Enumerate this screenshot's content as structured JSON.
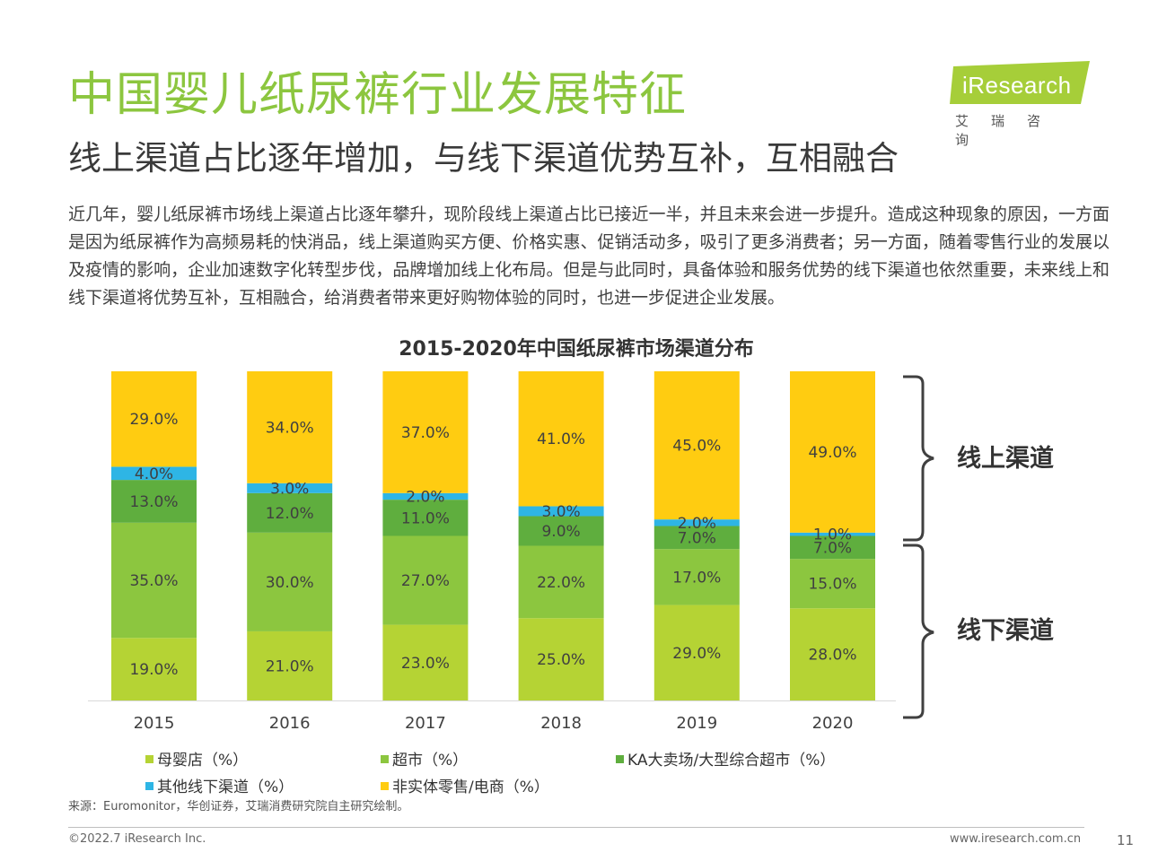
{
  "header": {
    "title": "中国婴儿纸尿裤行业发展特征",
    "subtitle": "线上渠道占比逐年增加，与线下渠道优势互补，互相融合"
  },
  "logo": {
    "brand": "iResearch",
    "cn": "艾瑞咨询",
    "color": "#a6ce39"
  },
  "body_text": "近几年，婴儿纸尿裤市场线上渠道占比逐年攀升，现阶段线上渠道占比已接近一半，并且未来会进一步提升。造成这种现象的原因，一方面是因为纸尿裤作为高频易耗的快消品，线上渠道购买方便、价格实惠、促销活动多，吸引了更多消费者；另一方面，随着零售行业的发展以及疫情的影响，企业加速数字化转型步伐，品牌增加线上化布局。但是与此同时，具备体验和服务优势的线下渠道也依然重要，未来线上和线下渠道将优势互补，互相融合，给消费者带来更好购物体验的同时，也进一步促进企业发展。",
  "chart_data": {
    "type": "bar",
    "stacked": true,
    "title": "2015-2020年中国纸尿裤市场渠道分布",
    "categories": [
      "2015",
      "2016",
      "2017",
      "2018",
      "2019",
      "2020"
    ],
    "ylim": [
      0,
      100
    ],
    "grid": false,
    "legend_position": "bottom",
    "series": [
      {
        "name": "母婴店（%）",
        "color": "#b5d334",
        "values": [
          19.0,
          21.0,
          23.0,
          25.0,
          29.0,
          28.0
        ]
      },
      {
        "name": "超市（%）",
        "color": "#8cc63f",
        "values": [
          35.0,
          30.0,
          27.0,
          22.0,
          17.0,
          15.0
        ]
      },
      {
        "name": "KA大卖场/大型综合超市（%）",
        "color": "#5fae3e",
        "values": [
          13.0,
          12.0,
          11.0,
          9.0,
          7.0,
          7.0
        ]
      },
      {
        "name": "其他线下渠道（%）",
        "color": "#2eb5e5",
        "values": [
          4.0,
          3.0,
          2.0,
          3.0,
          2.0,
          1.0
        ]
      },
      {
        "name": "非实体零售/电商（%）",
        "color": "#ffcc11",
        "values": [
          29.0,
          34.0,
          37.0,
          41.0,
          45.0,
          49.0
        ]
      }
    ],
    "data_labels": [
      [
        "19.0%",
        "21.0%",
        "23.0%",
        "25.0%",
        "29.0%",
        "28.0%"
      ],
      [
        "35.0%",
        "30.0%",
        "27.0%",
        "22.0%",
        "17.0%",
        "15.0%"
      ],
      [
        "13.0%",
        "12.0%",
        "11.0%",
        "9.0%",
        "7.0%",
        "7.0%"
      ],
      [
        "4.0%",
        "3.0%",
        "2.0%",
        "3.0%",
        "2.0%",
        "1.0%"
      ],
      [
        "29.0%",
        "34.0%",
        "37.0%",
        "41.0%",
        "45.0%",
        "49.0%"
      ]
    ],
    "annotations": {
      "online": "线上渠道",
      "offline": "线下渠道"
    }
  },
  "source": "来源：Euromonitor，华创证券，艾瑞消费研究院自主研究绘制。",
  "footer": {
    "copyright": "©2022.7 iResearch Inc.",
    "website": "www.iresearch.com.cn",
    "page": "11"
  }
}
